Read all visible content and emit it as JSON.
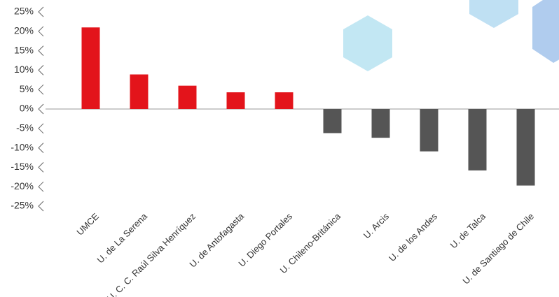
{
  "chart_data": {
    "type": "bar",
    "categories": [
      "UMCE",
      "U. de La Serena",
      "U. C. C. Raúl Silva Henríquez",
      "U. de Antofagasta",
      "U. Diego Portales",
      "U. Chileno-Británica",
      "U. Arcis",
      "U. de los Andes",
      "U. de Talca",
      "U. de Santiago de Chile"
    ],
    "values": [
      21.0,
      8.9,
      6.0,
      4.3,
      4.3,
      -6.2,
      -7.4,
      -10.9,
      -15.8,
      -19.7
    ],
    "colors": [
      "#e3141b",
      "#e3141b",
      "#e3141b",
      "#e3141b",
      "#e3141b",
      "#555555",
      "#555555",
      "#555555",
      "#555555",
      "#555555"
    ],
    "ylim": [
      -25,
      25
    ],
    "yticks": [
      {
        "value": 25,
        "label": "25%"
      },
      {
        "value": 20,
        "label": "20%"
      },
      {
        "value": 15,
        "label": "15%"
      },
      {
        "value": 10,
        "label": "10%"
      },
      {
        "value": 5,
        "label": "5%"
      },
      {
        "value": 0,
        "label": "0%"
      },
      {
        "value": -5,
        "label": "-5%"
      },
      {
        "value": -10,
        "label": "-10%"
      },
      {
        "value": -15,
        "label": "-15%"
      },
      {
        "value": -20,
        "label": "-20%"
      },
      {
        "value": -25,
        "label": "-25%"
      }
    ]
  }
}
